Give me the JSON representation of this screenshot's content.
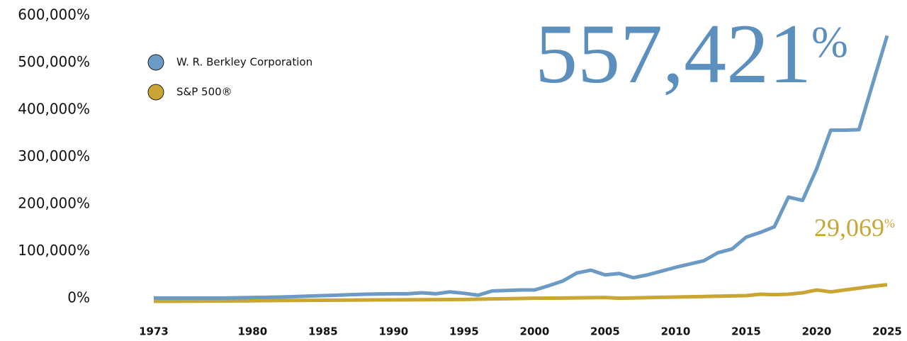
{
  "chart_data": {
    "type": "line",
    "x": [
      1973,
      1974,
      1975,
      1976,
      1977,
      1978,
      1979,
      1980,
      1981,
      1982,
      1983,
      1984,
      1985,
      1986,
      1987,
      1988,
      1989,
      1990,
      1991,
      1992,
      1993,
      1994,
      1995,
      1996,
      1997,
      1998,
      1999,
      2000,
      2001,
      2002,
      2003,
      2004,
      2005,
      2006,
      2007,
      2008,
      2009,
      2010,
      2011,
      2012,
      2013,
      2014,
      2015,
      2016,
      2017,
      2018,
      2019,
      2020,
      2021,
      2022,
      2023,
      2024,
      2025
    ],
    "series": [
      {
        "name": "W. R. Berkley Corporation",
        "color": "#6b9ac4",
        "values": [
          1000,
          1000,
          1000,
          1000,
          1000,
          1000,
          1500,
          2000,
          2500,
          3000,
          4000,
          5000,
          6000,
          7000,
          8000,
          9000,
          9500,
          10000,
          10000,
          12000,
          10000,
          14000,
          11000,
          7000,
          16000,
          17000,
          18000,
          18000,
          27000,
          37000,
          54000,
          60000,
          50000,
          53000,
          44000,
          50000,
          58000,
          66000,
          73000,
          80000,
          97000,
          105000,
          130000,
          140000,
          152000,
          215000,
          208000,
          275000,
          357000,
          357000,
          358000,
          458000,
          557421
        ]
      },
      {
        "name": "S&P 500®",
        "color": "#c9a533",
        "values": [
          -6000,
          -6000,
          -5800,
          -5600,
          -5400,
          -5200,
          -5000,
          -4800,
          -4600,
          -4400,
          -4200,
          -4000,
          -3800,
          -3600,
          -3400,
          -3200,
          -3100,
          -3000,
          -2800,
          -2600,
          -2400,
          -2200,
          -2000,
          -1500,
          -1000,
          -500,
          0,
          500,
          800,
          1000,
          1300,
          1600,
          2000,
          500,
          1200,
          1800,
          2400,
          3000,
          3600,
          4200,
          4800,
          5400,
          6000,
          9000,
          8000,
          9000,
          12000,
          18000,
          14000,
          18000,
          22000,
          26000,
          29069
        ]
      }
    ],
    "xlim": [
      1973,
      2025
    ],
    "xticks": [
      1973,
      1980,
      1985,
      1990,
      1995,
      2000,
      2005,
      2010,
      2015,
      2020,
      2025
    ],
    "ylim": [
      0,
      600000
    ],
    "yticks": [
      {
        "value": 0,
        "label": "0%"
      },
      {
        "value": 100000,
        "label": "100,000%"
      },
      {
        "value": 200000,
        "label": "200,000%"
      },
      {
        "value": 300000,
        "label": "300,000%"
      },
      {
        "value": 400000,
        "label": "400,000%"
      },
      {
        "value": 500000,
        "label": "500,000%"
      },
      {
        "value": 600000,
        "label": "600,000%"
      }
    ],
    "annotations": [
      {
        "text": "557,421",
        "suffix": "%"
      },
      {
        "text": "29,069",
        "suffix": "%"
      }
    ],
    "legend": "upper left"
  }
}
